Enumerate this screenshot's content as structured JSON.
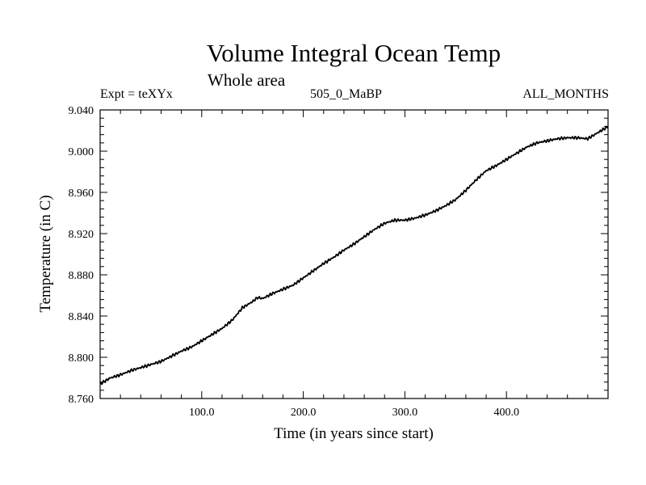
{
  "chart_data": {
    "type": "line",
    "title": "Volume Integral Ocean Temp",
    "subtitle": "Whole area",
    "annotations": {
      "left": "Expt = teXYx",
      "center": "505_0_MaBP",
      "right": "ALL_MONTHS"
    },
    "xlabel": "Time (in years since start)",
    "ylabel": "Temperature (in C)",
    "xlim": [
      0,
      500
    ],
    "ylim": [
      8.76,
      9.04
    ],
    "xticks": [
      100,
      200,
      300,
      400
    ],
    "xtick_labels": [
      "100.0",
      "200.0",
      "300.0",
      "400.0"
    ],
    "yticks": [
      8.76,
      8.8,
      8.84,
      8.88,
      8.92,
      8.96,
      9.0,
      9.04
    ],
    "ytick_labels": [
      "8.760",
      "8.800",
      "8.840",
      "8.880",
      "8.920",
      "8.960",
      "9.000",
      "9.040"
    ],
    "grid": false,
    "series": [
      {
        "x": [
          0,
          5,
          10,
          20,
          30,
          40,
          50,
          60,
          70,
          80,
          90,
          100,
          110,
          120,
          130,
          140,
          150,
          155,
          160,
          170,
          180,
          190,
          200,
          210,
          220,
          230,
          240,
          250,
          260,
          270,
          280,
          290,
          300,
          310,
          320,
          330,
          340,
          350,
          360,
          370,
          380,
          390,
          400,
          410,
          420,
          430,
          440,
          450,
          460,
          470,
          480,
          490,
          500
        ],
        "y": [
          8.774,
          8.777,
          8.78,
          8.783,
          8.787,
          8.79,
          8.793,
          8.796,
          8.801,
          8.806,
          8.81,
          8.816,
          8.822,
          8.828,
          8.836,
          8.848,
          8.854,
          8.858,
          8.857,
          8.862,
          8.866,
          8.87,
          8.877,
          8.884,
          8.891,
          8.897,
          8.904,
          8.91,
          8.917,
          8.924,
          8.93,
          8.933,
          8.933,
          8.935,
          8.938,
          8.942,
          8.947,
          8.953,
          8.962,
          8.972,
          8.981,
          8.986,
          8.992,
          8.998,
          9.004,
          9.008,
          9.01,
          9.012,
          9.013,
          9.013,
          9.012,
          9.018,
          9.024
        ]
      }
    ]
  }
}
